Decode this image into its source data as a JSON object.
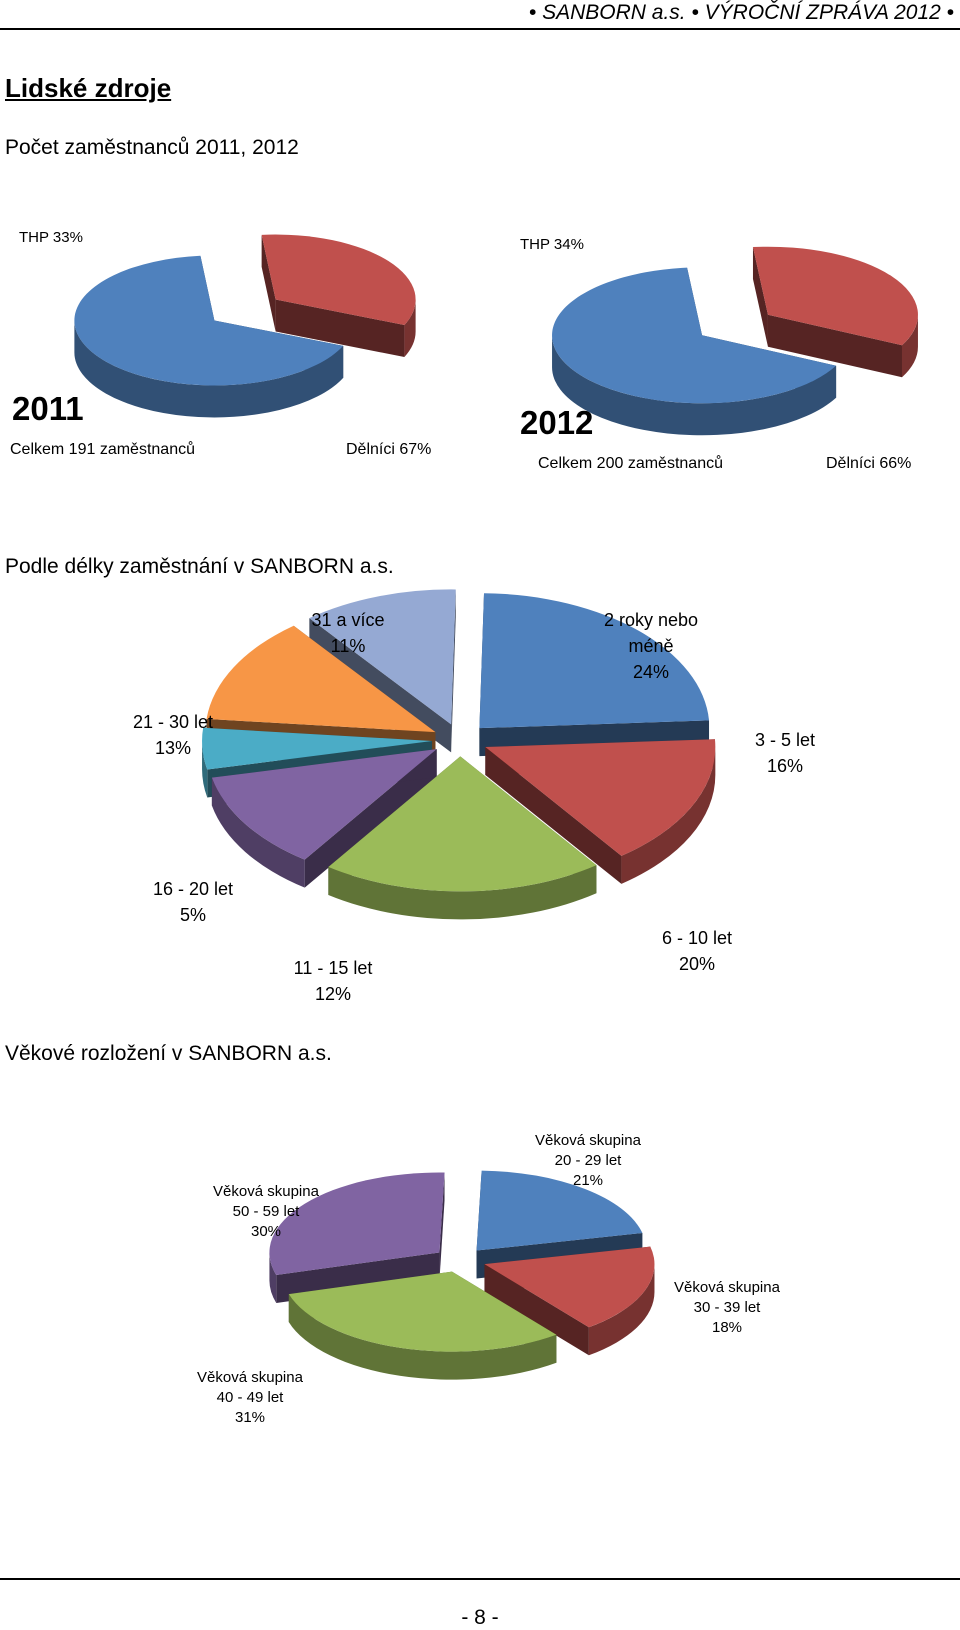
{
  "header": {
    "text": "• SANBORN a.s. • VÝROČNÍ ZPRÁVA 2012 •"
  },
  "section_title": "Lidské zdroje",
  "headings": {
    "headcount": "Počet zaměstnanců 2011, 2012",
    "tenure": "Podle délky zaměstnání v SANBORN a.s.",
    "age": "Věkové rozložení v SANBORN a.s."
  },
  "footer": {
    "page_number": "- 8 -"
  },
  "colors": {
    "blue": "#4F81BD",
    "red": "#C0504D",
    "green": "#9BBB59",
    "purple": "#8064A2",
    "teal": "#4BACC6",
    "orange": "#F79646",
    "lightblue": "#95A9D3"
  },
  "chart_data": [
    {
      "type": "pie",
      "id": "headcount-2011",
      "title": "2011",
      "subtitle": "Celkem 191 zaměstnanců",
      "slices": [
        {
          "label": "THP 33%",
          "value": 33,
          "color": "#C0504D"
        },
        {
          "label": "Dělníci 67%",
          "value": 67,
          "color": "#4F81BD"
        }
      ]
    },
    {
      "type": "pie",
      "id": "headcount-2012",
      "title": "2012",
      "subtitle": "Celkem 200 zaměstnanců",
      "slices": [
        {
          "label": "THP 34%",
          "value": 34,
          "color": "#C0504D"
        },
        {
          "label": "Dělníci 66%",
          "value": 66,
          "color": "#4F81BD"
        }
      ]
    },
    {
      "type": "pie",
      "id": "tenure",
      "slices": [
        {
          "label": "2 roky nebo méně",
          "pct": "24%",
          "value": 24,
          "color": "#4F81BD"
        },
        {
          "label": "3 - 5 let",
          "pct": "16%",
          "value": 16,
          "color": "#C0504D"
        },
        {
          "label": "6 - 10 let",
          "pct": "20%",
          "value": 20,
          "color": "#9BBB59"
        },
        {
          "label": "11 - 15 let",
          "pct": "12%",
          "value": 12,
          "color": "#8064A2"
        },
        {
          "label": "16 - 20 let",
          "pct": "5%",
          "value": 5,
          "color": "#4BACC6"
        },
        {
          "label": "21 - 30 let",
          "pct": "13%",
          "value": 13,
          "color": "#F79646"
        },
        {
          "label": "31 a více",
          "pct": "11%",
          "value": 11,
          "color": "#95A9D3"
        }
      ]
    },
    {
      "type": "pie",
      "id": "age",
      "slices": [
        {
          "label": "Věková skupina",
          "range": "20 - 29 let",
          "pct": "21%",
          "value": 21,
          "color": "#4F81BD"
        },
        {
          "label": "Věková skupina",
          "range": "30 - 39 let",
          "pct": "18%",
          "value": 18,
          "color": "#C0504D"
        },
        {
          "label": "Věková skupina",
          "range": "40 - 49 let",
          "pct": "31%",
          "value": 31,
          "color": "#9BBB59"
        },
        {
          "label": "Věková skupina",
          "range": "50 - 59 let",
          "pct": "30%",
          "value": 30,
          "color": "#8064A2"
        }
      ]
    }
  ]
}
